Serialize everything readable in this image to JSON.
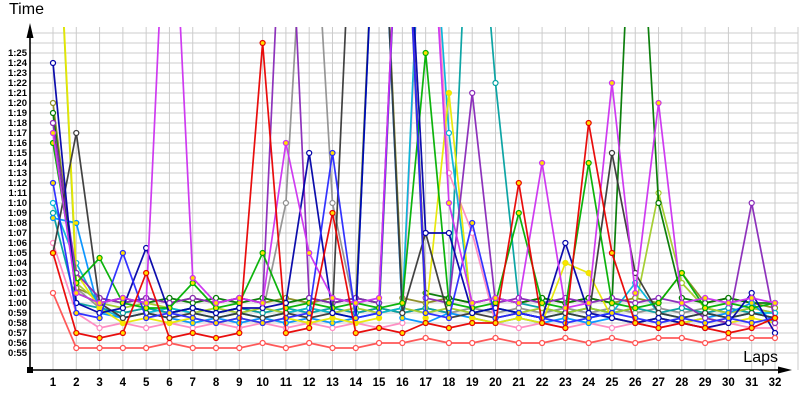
{
  "chart_data": {
    "type": "line",
    "title": "",
    "xlabel": "Laps",
    "ylabel": "Time",
    "x_ticks": [
      1,
      2,
      3,
      4,
      5,
      6,
      7,
      8,
      9,
      10,
      11,
      12,
      13,
      14,
      15,
      16,
      17,
      18,
      19,
      20,
      21,
      22,
      23,
      24,
      25,
      26,
      27,
      28,
      29,
      30,
      31,
      32
    ],
    "y_ticks": [
      "0:55",
      "0:56",
      "0:57",
      "0:58",
      "0:59",
      "1:00",
      "1:01",
      "1:02",
      "1:03",
      "1:04",
      "1:05",
      "1:06",
      "1:07",
      "1:08",
      "1:09",
      "1:10",
      "1:11",
      "1:12",
      "1:13",
      "1:14",
      "1:15",
      "1:16",
      "1:17",
      "1:18",
      "1:19",
      "1:20",
      "1:21",
      "1:22",
      "1:23",
      "1:24",
      "1:25"
    ],
    "y_range_seconds": [
      55,
      85
    ],
    "off_scale_value_seconds": 110,
    "grid": true,
    "legend_position": "none",
    "series": [
      {
        "name": "grey",
        "color": "#909090",
        "marker_fill": "#ffffff",
        "values": [
          78,
          61.5,
          59.5,
          59,
          59.5,
          59,
          59.5,
          59,
          59.5,
          59,
          70,
          110,
          70,
          59,
          59.5,
          59,
          59.5,
          59,
          59.5,
          59,
          59.5,
          59,
          59.5,
          59,
          59.5,
          59,
          59.5,
          59,
          59.5,
          59,
          59.5,
          59
        ]
      },
      {
        "name": "olive",
        "color": "#8a8a20",
        "marker_fill": "#ffffff",
        "values": [
          80,
          61.5,
          60.5,
          60,
          60.5,
          60,
          60.5,
          60,
          60.5,
          60,
          60.5,
          60,
          60.5,
          60,
          110,
          60.5,
          60,
          60.5,
          60,
          60.5,
          60,
          60.5,
          60,
          60.5,
          60,
          60.5,
          60,
          63,
          60,
          60.5,
          60,
          59.5
        ]
      },
      {
        "name": "teal",
        "color": "#00a0a0",
        "marker_fill": "#ffffff",
        "values": [
          69,
          60,
          59.5,
          59,
          59.5,
          59,
          59.5,
          59,
          59.5,
          59,
          59.5,
          59,
          59.5,
          59,
          59.5,
          59,
          59.5,
          59,
          110,
          82,
          60,
          59.5,
          59,
          59.5,
          59,
          59.5,
          59,
          59.5,
          59,
          59.5,
          59,
          58.5
        ]
      },
      {
        "name": "yellowgreen",
        "color": "#a0cc28",
        "marker_fill": "#ffffff",
        "values": [
          110,
          62,
          60,
          59.5,
          60,
          59.5,
          59,
          59.5,
          59,
          59.5,
          59,
          59.5,
          59,
          59.5,
          59,
          59.5,
          59,
          59.5,
          59,
          59.5,
          59,
          59.5,
          59,
          59.5,
          59,
          59.5,
          71,
          62,
          59.5,
          59,
          59.5,
          59
        ]
      },
      {
        "name": "darkgreen",
        "color": "#007800",
        "marker_fill": "#ffffff",
        "values": [
          79,
          61,
          60,
          60.5,
          60,
          60.5,
          60,
          60.5,
          60,
          60.5,
          60,
          60.5,
          60,
          60.5,
          60,
          110,
          61,
          60.5,
          60,
          60.5,
          60,
          60.5,
          60,
          60.5,
          60,
          110,
          70,
          60.5,
          60,
          60.5,
          60,
          60
        ]
      },
      {
        "name": "pink",
        "color": "#ff88c0",
        "marker_fill": "#ffffff",
        "values": [
          66,
          59,
          57.5,
          58,
          57.5,
          58,
          57.5,
          58,
          57.5,
          58,
          57.5,
          58,
          57.5,
          58,
          57.5,
          58,
          110,
          73,
          67,
          58,
          57.5,
          58,
          57.5,
          58,
          57.5,
          58,
          57.5,
          58,
          57.5,
          58,
          57.5,
          57.5
        ]
      },
      {
        "name": "cyan",
        "color": "#00b4d8",
        "marker_fill": "#ffffff",
        "values": [
          70,
          64,
          59.5,
          58.5,
          59,
          59.5,
          59,
          58.5,
          59,
          58.5,
          59,
          59.5,
          59,
          58.5,
          59,
          59.5,
          110,
          77,
          59,
          59.5,
          59,
          58.5,
          59,
          58.5,
          59,
          62,
          59,
          58.5,
          59,
          58.5,
          59,
          59
        ]
      },
      {
        "name": "dodgerblue",
        "color": "#0090ff",
        "marker_fill": "#ffe000",
        "values": [
          68.5,
          68,
          59,
          58.5,
          59,
          58.5,
          58,
          58.5,
          58,
          58.5,
          58,
          58.5,
          58,
          58.5,
          110,
          58.5,
          58,
          59,
          58.5,
          58,
          58.5,
          58,
          58.5,
          58,
          58.5,
          58,
          58.5,
          58,
          58.5,
          59,
          60,
          58
        ]
      },
      {
        "name": "yellow",
        "color": "#e8e800",
        "marker_fill": "#ffe000",
        "values": [
          110,
          63,
          59.5,
          58,
          58.5,
          58,
          58.5,
          58,
          58.5,
          58,
          58.5,
          58,
          58.5,
          58,
          58.5,
          110,
          58.5,
          81,
          58.5,
          58,
          58.5,
          58,
          64,
          63,
          58.5,
          58,
          58.5,
          58,
          58.5,
          58,
          58.5,
          58
        ]
      },
      {
        "name": "purple",
        "color": "#8828b8",
        "marker_fill": "#ffffff",
        "values": [
          78,
          63,
          60.5,
          60,
          60.5,
          60,
          60.5,
          60,
          60.5,
          60,
          110,
          60.5,
          60,
          60.5,
          60,
          110,
          60.5,
          60,
          81,
          60,
          60.5,
          60,
          60.5,
          60,
          60.5,
          60,
          60.5,
          60,
          58.5,
          58,
          70,
          58
        ]
      },
      {
        "name": "black",
        "color": "#383838",
        "marker_fill": "#ffffff",
        "values": [
          65,
          77,
          60,
          58.5,
          59,
          58.5,
          59,
          58.5,
          59,
          58.5,
          59,
          58.5,
          59,
          110,
          110,
          59,
          67,
          58.5,
          59,
          58.5,
          59,
          58.5,
          59,
          58.5,
          75,
          63,
          59,
          58.5,
          59,
          58.5,
          59,
          58.5
        ]
      },
      {
        "name": "green",
        "color": "#00b000",
        "marker_fill": "#ffe000",
        "values": [
          76,
          62,
          64.5,
          60,
          59.5,
          59.5,
          62,
          59.5,
          60,
          65,
          59.5,
          60,
          59.5,
          60,
          59.5,
          60,
          85,
          60,
          59.5,
          60,
          69,
          60,
          59.5,
          74,
          60,
          59.5,
          60,
          63,
          59.5,
          60,
          59.5,
          60
        ]
      },
      {
        "name": "navy",
        "color": "#0000a8",
        "marker_fill": "#ffffff",
        "values": [
          84,
          60,
          59,
          59.5,
          65.5,
          59,
          59.5,
          59,
          59.5,
          59.5,
          60,
          75,
          59,
          58.5,
          110,
          110,
          67,
          67,
          59,
          59.5,
          59,
          58.5,
          66,
          59,
          58.5,
          58,
          58.5,
          58,
          57.5,
          58,
          61,
          57
        ]
      },
      {
        "name": "blue",
        "color": "#2828ff",
        "marker_fill": "#ffe000",
        "values": [
          72,
          59,
          58.5,
          65,
          58.5,
          59,
          58.5,
          58,
          58.5,
          58,
          58.5,
          59,
          75,
          58.5,
          59,
          110,
          59,
          58.5,
          68,
          58.5,
          59,
          58.5,
          58,
          58.5,
          59,
          58.5,
          58,
          58.5,
          58,
          58.5,
          58,
          58.5
        ]
      },
      {
        "name": "magenta",
        "color": "#cc30f0",
        "marker_fill": "#ffe000",
        "values": [
          77,
          61,
          60,
          60.5,
          60,
          110,
          62.5,
          60,
          60.5,
          60,
          76,
          65,
          60.5,
          60,
          60.5,
          110,
          110,
          70,
          60,
          60.5,
          60,
          74,
          59.5,
          60,
          82,
          61,
          80,
          60,
          60.5,
          60,
          60.5,
          60
        ]
      },
      {
        "name": "lightred",
        "color": "#ff5050",
        "marker_fill": "#ffffff",
        "values": [
          61,
          55.5,
          55.5,
          55.5,
          55.5,
          56,
          55.5,
          55.5,
          55.5,
          56,
          55.5,
          56,
          55.5,
          55.5,
          56,
          56,
          56.5,
          56,
          56,
          56.5,
          56,
          56,
          56.5,
          56,
          56.5,
          56,
          56.5,
          56.5,
          56,
          56.5,
          56.5,
          56.5
        ]
      },
      {
        "name": "red",
        "color": "#e80000",
        "marker_fill": "#ffe000",
        "values": [
          65,
          57,
          56.5,
          57,
          63,
          56.5,
          57,
          56.5,
          57,
          86,
          57,
          57.5,
          69,
          57,
          57.5,
          57,
          58,
          57.5,
          58,
          58,
          72,
          58,
          57.5,
          78,
          65,
          58,
          57.5,
          58,
          57.5,
          57,
          57.5,
          58.5
        ]
      }
    ]
  },
  "colors": {
    "background": "#ffffff",
    "grid": "#cccccc",
    "axis": "#000000",
    "tick_label": "#000000"
  }
}
